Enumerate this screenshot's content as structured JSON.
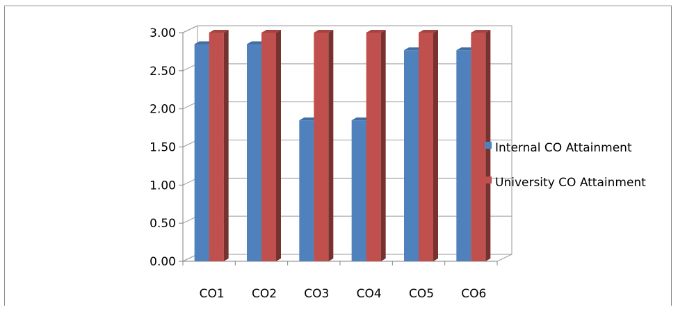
{
  "chart_data": {
    "type": "bar",
    "categories": [
      "CO1",
      "CO2",
      "CO3",
      "CO4",
      "CO5",
      "CO6"
    ],
    "series": [
      {
        "name": "Internal CO Attainment",
        "values": [
          2.85,
          2.85,
          1.85,
          1.85,
          2.77,
          2.77
        ],
        "color": "#4f81bd"
      },
      {
        "name": "University CO Attainment",
        "values": [
          3.0,
          3.0,
          3.0,
          3.0,
          3.0,
          3.0
        ],
        "color": "#c0504d"
      }
    ],
    "y_ticks": [
      "0.00",
      "0.50",
      "1.00",
      "1.50",
      "2.00",
      "2.50",
      "3.00"
    ],
    "ylim": [
      0,
      3
    ],
    "grid": true,
    "legend_position": "right",
    "style": "3d-clustered-column"
  }
}
